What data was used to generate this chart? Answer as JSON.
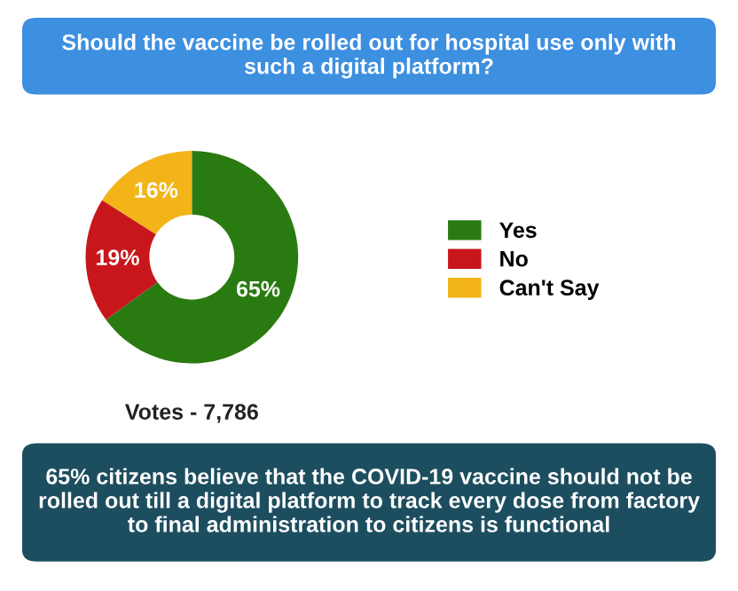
{
  "chart_data": {
    "type": "donut",
    "title": "Should the vaccine be rolled out for hospital use only with such a digital platform?",
    "categories": [
      "Yes",
      "No",
      "Can't Say"
    ],
    "values": [
      65,
      19,
      16
    ],
    "colors": [
      "#2a7a12",
      "#c8171c",
      "#f2b418"
    ],
    "value_labels": [
      "65%",
      "19%",
      "16%"
    ],
    "legend": "right",
    "annotations": [
      "Votes - 7,786",
      "65% citizens believe that the COVID-19 vaccine should not be rolled out till a digital platform to track every dose from factory to final administration to citizens is functional"
    ]
  }
}
